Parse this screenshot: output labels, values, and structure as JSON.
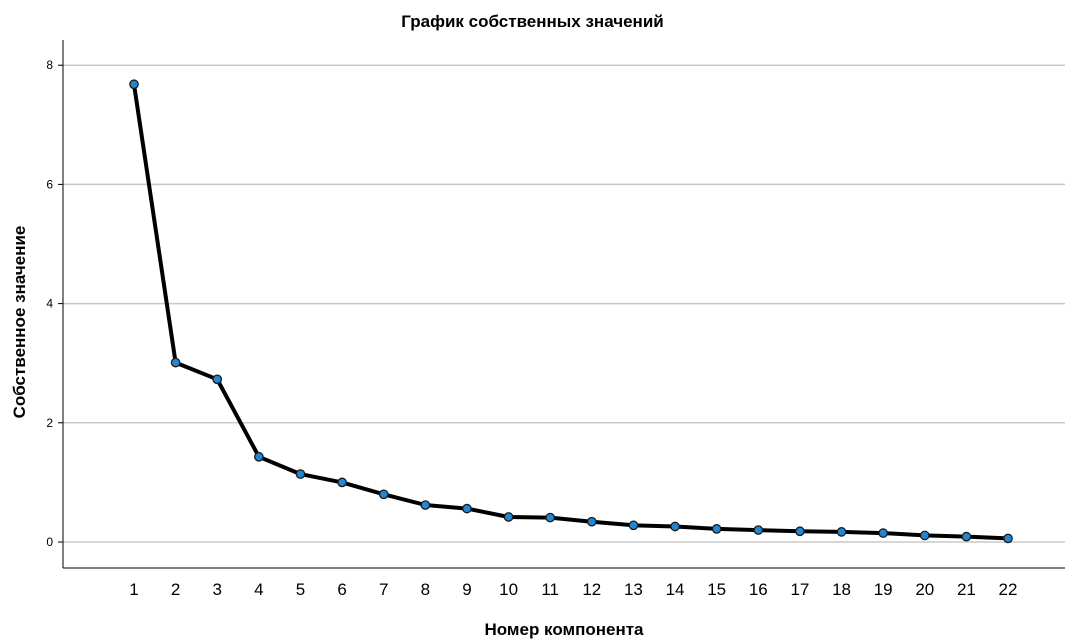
{
  "chart_data": {
    "type": "line",
    "title": "График собственных значений",
    "xlabel": "Номер компонента",
    "ylabel": "Собственное значение",
    "x": [
      1,
      2,
      3,
      4,
      5,
      6,
      7,
      8,
      9,
      10,
      11,
      12,
      13,
      14,
      15,
      16,
      17,
      18,
      19,
      20,
      21,
      22
    ],
    "series": [
      {
        "values": [
          7.68,
          3.01,
          2.73,
          1.43,
          1.14,
          1.0,
          0.8,
          0.62,
          0.56,
          0.42,
          0.41,
          0.34,
          0.28,
          0.26,
          0.22,
          0.2,
          0.18,
          0.17,
          0.15,
          0.11,
          0.09,
          0.06
        ]
      }
    ],
    "yticks": [
      "0",
      "2",
      "4",
      "6",
      "8"
    ],
    "ylim": [
      -0.45,
      8.45
    ],
    "grid": "horizontal",
    "colors": {
      "line": "#000000",
      "marker": "#1e88d6",
      "grid": "#c8c8c8"
    }
  }
}
